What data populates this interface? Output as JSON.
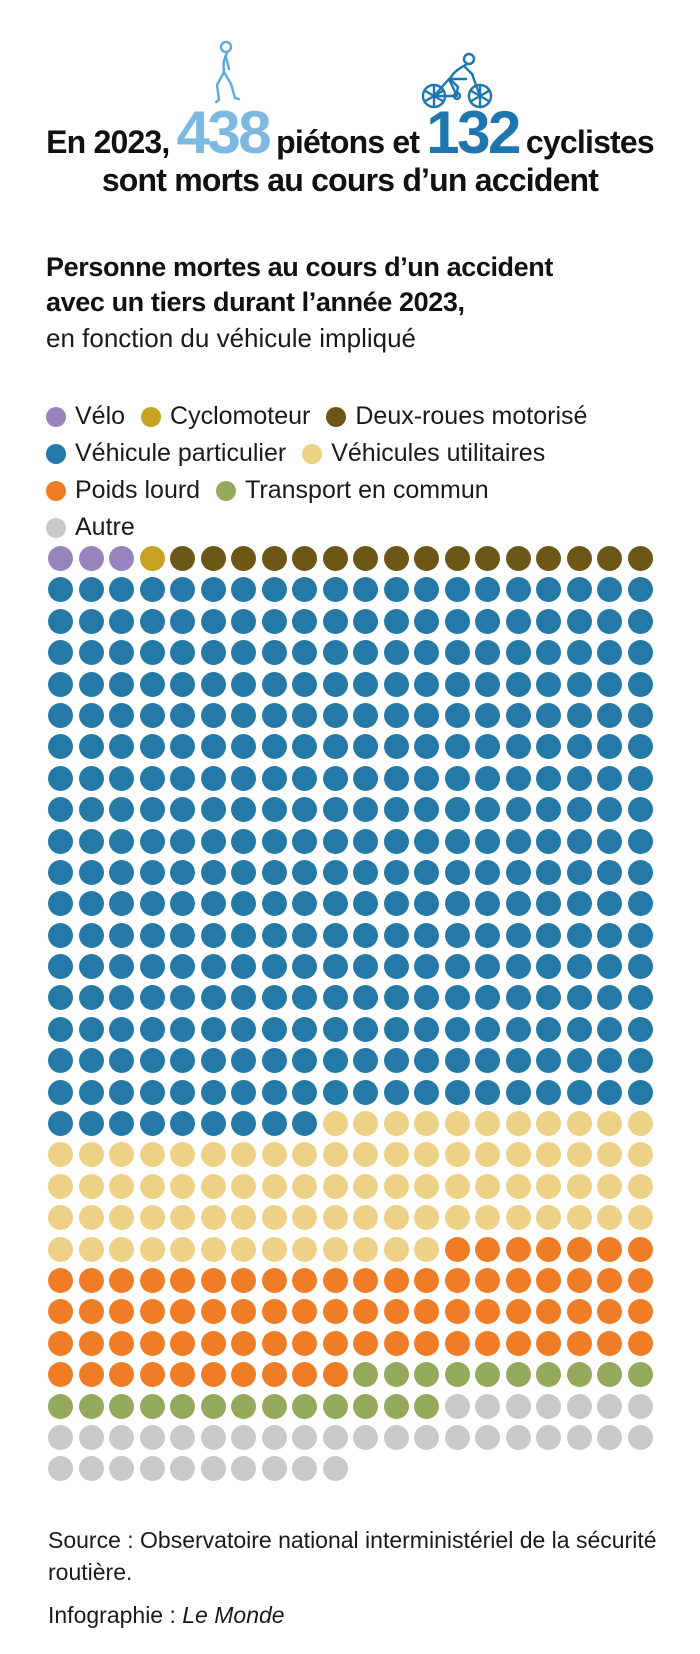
{
  "header": {
    "line1_prefix": "En 2023,",
    "pedestrians_count": "438",
    "line1_middle": "piétons et",
    "cyclists_count": "132",
    "line1_suffix": "cyclistes",
    "line2": "sont morts au cours d’un accident",
    "pedestrian_icon_color": "#5da9d8",
    "cyclist_icon_color": "#1d76ae",
    "pedestrians_color": "#7cb8df",
    "cyclists_color": "#1d76ae"
  },
  "title": {
    "bold_line1": "Personne mortes au cours d’un accident",
    "bold_line2": "avec un tiers durant l’année 2023,",
    "sub": "en fonction du véhicule impliqué"
  },
  "legend": {
    "rows": [
      [
        0,
        1,
        2
      ],
      [
        3,
        4
      ],
      [
        5,
        6
      ],
      [
        7
      ]
    ]
  },
  "chart_data": {
    "type": "waffle",
    "columns": 20,
    "rows": 30,
    "total_dots": 590,
    "series": [
      {
        "key": "velo",
        "name": "Vélo",
        "value": 3,
        "color": "#9784bf"
      },
      {
        "key": "cyclomoteur",
        "name": "Cyclomoteur",
        "value": 1,
        "color": "#c9a120"
      },
      {
        "key": "deux-roues-motorise",
        "name": "Deux-roues motorisé",
        "value": 16,
        "color": "#6c5717"
      },
      {
        "key": "vehicule-particulier",
        "name": "Véhicule particulier",
        "value": 349,
        "color": "#2579a7"
      },
      {
        "key": "vehicules-utilitaires",
        "name": "Véhicules utilitaires",
        "value": 84,
        "color": "#ecd186"
      },
      {
        "key": "poids-lourd",
        "name": "Poids lourd",
        "value": 77,
        "color": "#ee7d26"
      },
      {
        "key": "transport-en-commun",
        "name": "Transport en commun",
        "value": 23,
        "color": "#95a95c"
      },
      {
        "key": "autre",
        "name": "Autre",
        "value": 37,
        "color": "#c9c9c9"
      }
    ]
  },
  "footer": {
    "source": "Source : Observatoire national interministériel de la sécurité routière.",
    "credit_label": "Infographie : ",
    "credit_name": "Le Monde"
  }
}
